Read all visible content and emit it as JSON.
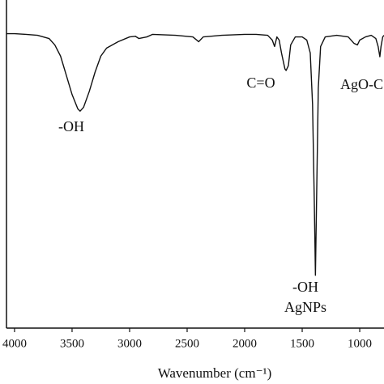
{
  "chart_data": {
    "type": "line",
    "xlabel": "Wavenumber (cm⁻¹)",
    "xlim": [
      4070,
      789
    ],
    "ylim": [
      0,
      100
    ],
    "xticks": [
      4000,
      3500,
      3000,
      2500,
      2000,
      1500,
      1000
    ],
    "annotations": [
      "-OH",
      "C=O",
      "-OH",
      "AgNPs",
      "AgO-C"
    ],
    "series": [
      {
        "color": "#111111",
        "x": [
          4070,
          4000,
          3900,
          3800,
          3700,
          3650,
          3600,
          3550,
          3500,
          3450,
          3430,
          3400,
          3350,
          3300,
          3250,
          3200,
          3100,
          3000,
          2950,
          2920,
          2850,
          2800,
          2600,
          2450,
          2400,
          2360,
          2200,
          2000,
          1900,
          1800,
          1760,
          1740,
          1720,
          1700,
          1680,
          1650,
          1640,
          1620,
          1600,
          1560,
          1500,
          1460,
          1430,
          1410,
          1395,
          1385,
          1375,
          1360,
          1340,
          1300,
          1200,
          1100,
          1050,
          1020,
          1000,
          950,
          900,
          860,
          840,
          825,
          815,
          800,
          789
        ],
        "values": [
          92,
          92,
          91.8,
          91.5,
          90.5,
          88.5,
          85,
          79,
          73,
          68.5,
          67.8,
          69,
          74,
          80,
          85,
          87.5,
          89.5,
          91,
          91.2,
          90.5,
          91,
          91.8,
          91.5,
          91,
          89.5,
          91,
          91.5,
          91.8,
          91.8,
          91.5,
          90,
          88,
          91,
          90,
          86,
          81,
          80.5,
          82,
          88.5,
          91,
          91,
          90,
          86,
          70,
          40,
          16.5,
          40,
          75,
          88,
          91,
          91.5,
          91,
          89,
          88.5,
          90,
          91,
          91.5,
          90.5,
          88,
          84.8,
          88,
          91,
          91.5
        ]
      }
    ]
  }
}
